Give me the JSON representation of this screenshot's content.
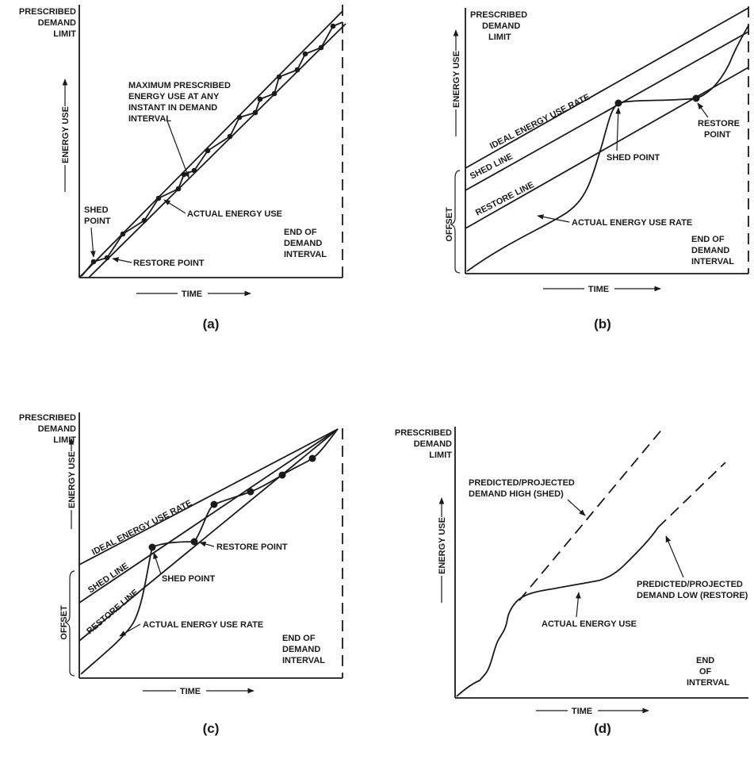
{
  "panels": {
    "a": {
      "caption": "(a)",
      "y_top": [
        "PRESCRIBED",
        "DEMAND",
        "LIMIT"
      ],
      "y_axis": "ENERGY USE",
      "x_axis": "TIME",
      "max_label": [
        "MAXIMUM PRESCRIBED",
        "ENERGY USE AT ANY",
        "INSTANT IN DEMAND",
        "INTERVAL"
      ],
      "actual": "ACTUAL ENERGY USE",
      "shed": [
        "SHED",
        "POINT"
      ],
      "restore": "RESTORE POINT",
      "end": [
        "END OF",
        "DEMAND",
        "INTERVAL"
      ]
    },
    "b": {
      "caption": "(b)",
      "y_top": [
        "PRESCRIBED",
        "DEMAND",
        "LIMIT"
      ],
      "y_axis": "ENERGY USE",
      "x_axis": "TIME",
      "ideal": "IDEAL ENERGY USE RATE",
      "shed_line": "SHED LINE",
      "restore_line": "RESTORE LINE",
      "shed_point": "SHED POINT",
      "restore_point": [
        "RESTORE",
        "POINT"
      ],
      "actual": "ACTUAL ENERGY USE RATE",
      "offset": "OFFSET",
      "end": [
        "END OF",
        "DEMAND",
        "INTERVAL"
      ]
    },
    "c": {
      "caption": "(c)",
      "y_top": [
        "PRESCRIBED",
        "DEMAND",
        "LIMIT"
      ],
      "y_axis": "ENERGY USE",
      "x_axis": "TIME",
      "ideal": "IDEAL ENERGY USE RATE",
      "shed_line": "SHED LINE",
      "restore_line": "RESTORE LINE",
      "shed_point": "SHED POINT",
      "restore_point": "RESTORE POINT",
      "actual": "ACTUAL ENERGY USE RATE",
      "offset": "OFFSET",
      "end": [
        "END OF",
        "DEMAND",
        "INTERVAL"
      ]
    },
    "d": {
      "caption": "(d)",
      "y_top": [
        "PRESCRIBED",
        "DEMAND",
        "LIMIT"
      ],
      "y_axis": "ENERGY USE",
      "x_axis": "TIME",
      "high": [
        "PREDICTED/PROJECTED",
        "DEMAND HIGH (SHED)"
      ],
      "low": [
        "PREDICTED/PROJECTED",
        "DEMAND LOW (RESTORE)"
      ],
      "actual": "ACTUAL ENERGY USE",
      "end": [
        "END",
        "OF",
        "INTERVAL"
      ]
    }
  }
}
